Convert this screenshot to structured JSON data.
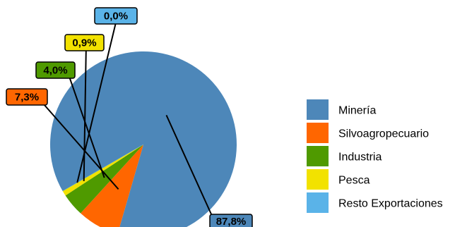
{
  "chart_data": {
    "type": "pie",
    "title": "",
    "legend_position": "right",
    "slices": [
      {
        "label": "Minería",
        "value": 87.8,
        "display": "87,8%",
        "color": "#4d87b9",
        "label_color": "#4d87b9"
      },
      {
        "label": "Silvoagropecuario",
        "value": 7.3,
        "display": "7,3%",
        "color": "#ff6600",
        "label_color": "#ff6600"
      },
      {
        "label": "Industria",
        "value": 4.0,
        "display": "4,0%",
        "color": "#4f9a00",
        "label_color": "#4f9a00"
      },
      {
        "label": "Pesca",
        "value": 0.9,
        "display": "0,9%",
        "color": "#f2e200",
        "label_color": "#f2e200"
      },
      {
        "label": "Resto Exportaciones",
        "value": 0.0,
        "display": "0,0%",
        "color": "#5ab3e8",
        "label_color": "#5ab3e8"
      }
    ]
  }
}
